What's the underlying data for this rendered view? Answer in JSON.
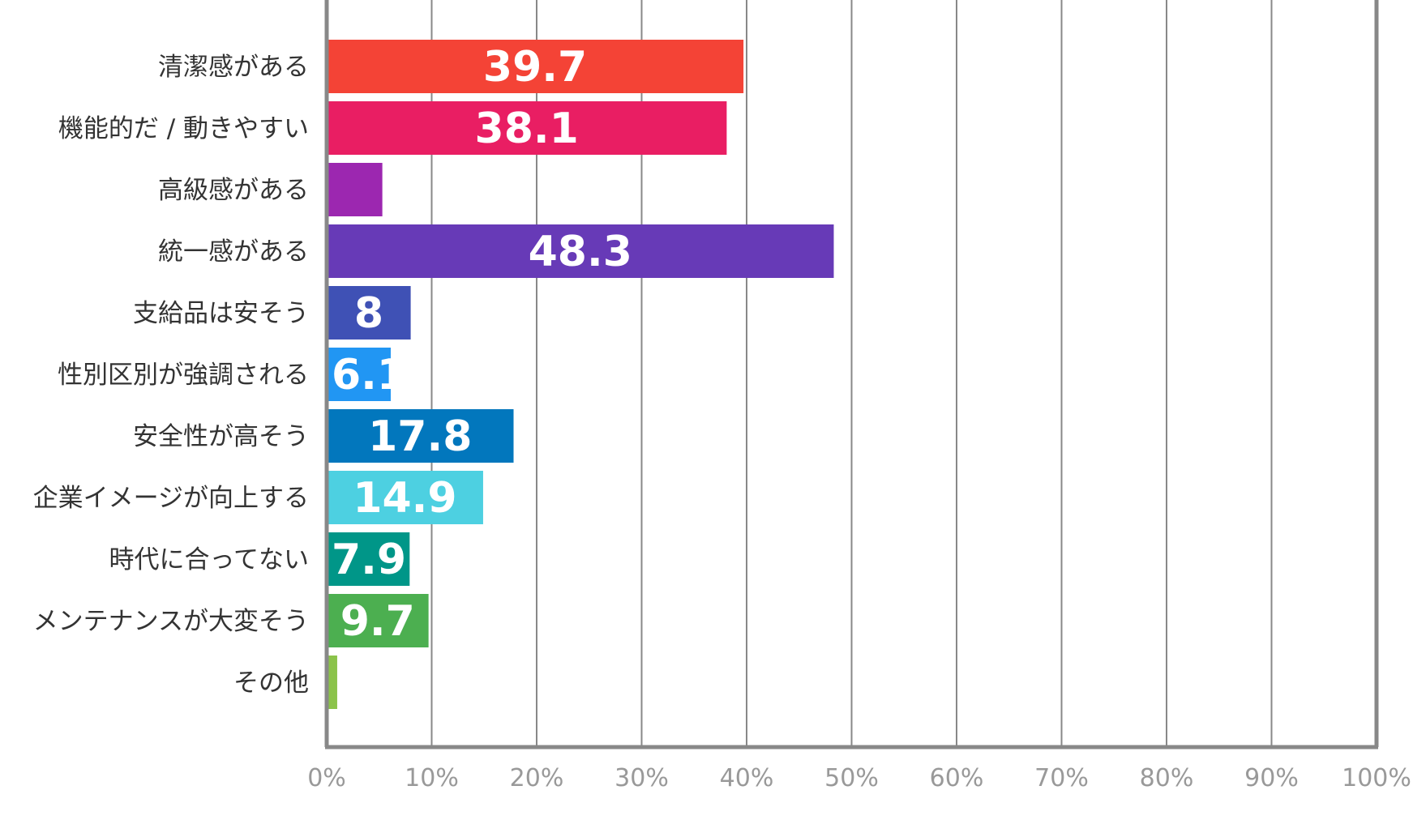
{
  "chart_data": {
    "type": "bar",
    "orientation": "horizontal",
    "categories": [
      "清潔感がある",
      "機能的だ / 動きやすい",
      "高級感がある",
      "統一感がある",
      "支給品は安そう",
      "性別区別が強調される",
      "安全性が高そう",
      "企業イメージが向上する",
      "時代に合ってない",
      "メンテナンスが大変そう",
      "その他"
    ],
    "values": [
      39.7,
      38.1,
      5.3,
      48.3,
      8,
      6.1,
      17.8,
      14.9,
      7.9,
      9.7,
      1.0
    ],
    "data_labels": [
      "39.7",
      "38.1",
      "",
      "48.3",
      "8",
      "6.1",
      "17.8",
      "14.9",
      "7.9",
      "9.7",
      ""
    ],
    "colors": [
      "#f44336",
      "#e91e63",
      "#9c27b0",
      "#673ab7",
      "#3f51b5",
      "#2196f3",
      "#0277bd",
      "#4dd0e1",
      "#009688",
      "#4caf50",
      "#8bc34a"
    ],
    "x_ticks": [
      "0%",
      "10%",
      "20%",
      "30%",
      "40%",
      "50%",
      "60%",
      "70%",
      "80%",
      "90%",
      "100%"
    ],
    "xlim": [
      0,
      100
    ],
    "grid": true,
    "gridline_color": "#888888",
    "title": "",
    "xlabel": "",
    "ylabel": ""
  }
}
